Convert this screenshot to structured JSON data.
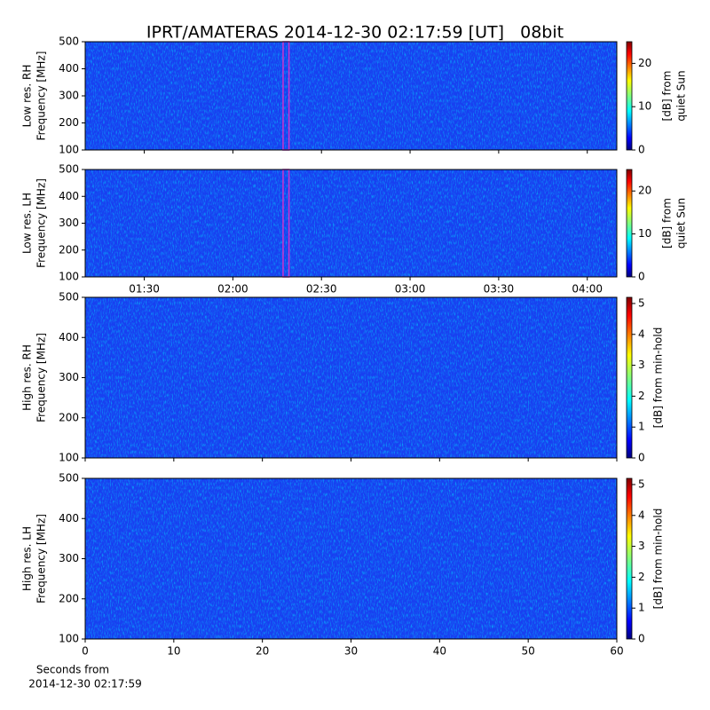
{
  "chart_data": [
    {
      "type": "heatmap",
      "title": "IPRT/AMATERAS 2014-12-30 02:17:59 [UT]   08bit",
      "ylabel": [
        "Low res. RH",
        "Frequency [MHz]"
      ],
      "ylim": [
        100,
        500
      ],
      "yticks": [
        100,
        200,
        300,
        400,
        500
      ],
      "xlim": [
        "01:10",
        "04:10"
      ],
      "highlight_x": [
        "02:17",
        "02:19"
      ],
      "highlight_color": "#cc33cc",
      "cmap": "jet",
      "colorbar": {
        "label": [
          "[dB] from",
          "quiet Sun"
        ],
        "lim": [
          0,
          25
        ],
        "ticks": [
          0,
          10,
          20
        ]
      }
    },
    {
      "type": "heatmap",
      "ylabel": [
        "Low res. LH",
        "Frequency [MHz]"
      ],
      "ylim": [
        100,
        500
      ],
      "yticks": [
        100,
        200,
        300,
        400,
        500
      ],
      "xlim": [
        "01:10",
        "04:10"
      ],
      "xticks": [
        "01:30",
        "02:00",
        "02:30",
        "03:00",
        "03:30",
        "04:00"
      ],
      "highlight_x": [
        "02:17",
        "02:19"
      ],
      "highlight_color": "#cc33cc",
      "cmap": "jet",
      "colorbar": {
        "label": [
          "[dB] from",
          "quiet Sun"
        ],
        "lim": [
          0,
          25
        ],
        "ticks": [
          0,
          10,
          20
        ]
      }
    },
    {
      "type": "heatmap",
      "ylabel": [
        "High res. RH",
        "Frequency [MHz]"
      ],
      "ylim": [
        100,
        500
      ],
      "yticks": [
        100,
        200,
        300,
        400,
        500
      ],
      "xlim": [
        0,
        60
      ],
      "cmap": "jet",
      "colorbar": {
        "label": "[dB] from min-hold",
        "lim": [
          0,
          5.2
        ],
        "ticks": [
          0,
          1,
          2,
          3,
          4,
          5
        ]
      }
    },
    {
      "type": "heatmap",
      "ylabel": [
        "High res. LH",
        "Frequency [MHz]"
      ],
      "ylim": [
        100,
        500
      ],
      "yticks": [
        100,
        200,
        300,
        400,
        500
      ],
      "xlim": [
        0,
        60
      ],
      "xticks": [
        0,
        10,
        20,
        30,
        40,
        50,
        60
      ],
      "xlabel": [
        "Seconds from",
        "2014-12-30 02:17:59"
      ],
      "cmap": "jet",
      "colorbar": {
        "label": "[dB] from min-hold",
        "lim": [
          0,
          5.2
        ],
        "ticks": [
          0,
          1,
          2,
          3,
          4,
          5
        ]
      }
    }
  ]
}
